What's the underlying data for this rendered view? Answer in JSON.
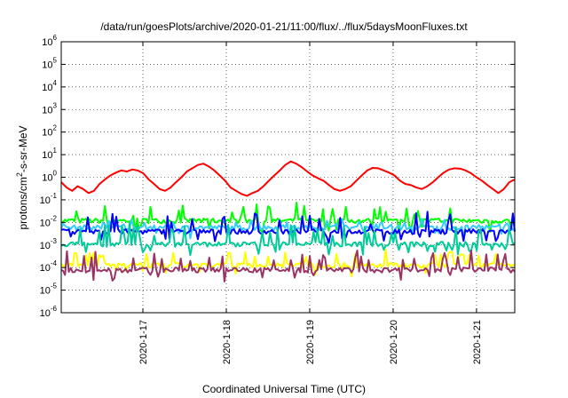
{
  "chart_data": {
    "type": "line",
    "title": "/data/run/goesPlots/archive/2020-01-21/11:00/flux/../flux/5daysMoonFluxes.txt",
    "xlabel": "Coordinated Universal Time (UTC)",
    "ylabel": {
      "prefix": "protons/cm",
      "sup": "2",
      "suffix": "-s-sr-MeV"
    },
    "x_range": [
      "2020-01-16 00:30",
      "2020-01-21 11:00"
    ],
    "x_ticks": [
      "2020-1-17",
      "2020-1-18",
      "2020-1-19",
      "2020-1-20",
      "2020-1-21"
    ],
    "y_scale": "log",
    "y_range": [
      1e-06,
      1000000.0
    ],
    "y_ticks": [
      {
        "base": "10",
        "exp": "-6"
      },
      {
        "base": "10",
        "exp": "-5"
      },
      {
        "base": "10",
        "exp": "-4"
      },
      {
        "base": "10",
        "exp": "-3"
      },
      {
        "base": "10",
        "exp": "-2"
      },
      {
        "base": "10",
        "exp": "-1"
      },
      {
        "base": "10",
        "exp": "0"
      },
      {
        "base": "10",
        "exp": "1"
      },
      {
        "base": "10",
        "exp": "2"
      },
      {
        "base": "10",
        "exp": "3"
      },
      {
        "base": "10",
        "exp": "4"
      },
      {
        "base": "10",
        "exp": "5"
      },
      {
        "base": "10",
        "exp": "6"
      }
    ],
    "grid": true,
    "series": [
      {
        "color": "#ff0000",
        "values": [
          0.6,
          0.35,
          0.25,
          0.4,
          0.3,
          0.2,
          0.25,
          0.5,
          0.8,
          1.2,
          1.6,
          2.0,
          1.8,
          2.2,
          2.0,
          1.5,
          0.8,
          0.5,
          0.3,
          0.25,
          0.35,
          0.6,
          1.0,
          1.8,
          2.5,
          3.5,
          4.0,
          3.0,
          2.0,
          1.2,
          0.7,
          0.35,
          0.25,
          0.18,
          0.15,
          0.2,
          0.25,
          0.4,
          0.7,
          1.2,
          2.0,
          3.5,
          5.0,
          4.0,
          2.8,
          1.8,
          1.2,
          0.9,
          0.7,
          0.45,
          0.3,
          0.25,
          0.3,
          0.4,
          0.7,
          1.2,
          2.0,
          2.6,
          2.5,
          2.0,
          1.6,
          1.2,
          0.7,
          0.5,
          0.45,
          0.35,
          0.3,
          0.4,
          0.6,
          1.0,
          1.6,
          2.2,
          2.5,
          2.4,
          2.0,
          1.5,
          1.0,
          0.7,
          0.45,
          0.3,
          0.2,
          0.3,
          0.6,
          0.8
        ]
      },
      {
        "color": "#00ff00",
        "baseline": 0.012,
        "peaks": [
          0.06,
          0.035,
          0.07,
          0.04,
          0.08,
          0.06,
          0.05,
          0.08,
          0.04,
          0.03,
          0.06,
          0.05
        ]
      },
      {
        "color": "#33ccff",
        "baseline": 0.006,
        "peaks": [
          0.012,
          0.009,
          0.015,
          0.01,
          0.014,
          0.011
        ]
      },
      {
        "color": "#0000ff",
        "baseline": 0.004,
        "peaks": [
          0.02,
          0.012,
          0.025,
          0.015,
          0.03,
          0.02
        ]
      },
      {
        "color": "#00cc99",
        "baseline": 0.0011,
        "peaks": [
          0.008,
          0.004,
          0.01,
          0.006
        ]
      },
      {
        "color": "#ffff00",
        "baseline": 0.00013,
        "peaks": [
          0.0006,
          0.0004,
          0.0007,
          0.0005
        ]
      },
      {
        "color": "#993366",
        "baseline": 8e-05,
        "peaks": [
          0.0005,
          0.0003,
          0.0006,
          0.0004
        ]
      }
    ]
  }
}
